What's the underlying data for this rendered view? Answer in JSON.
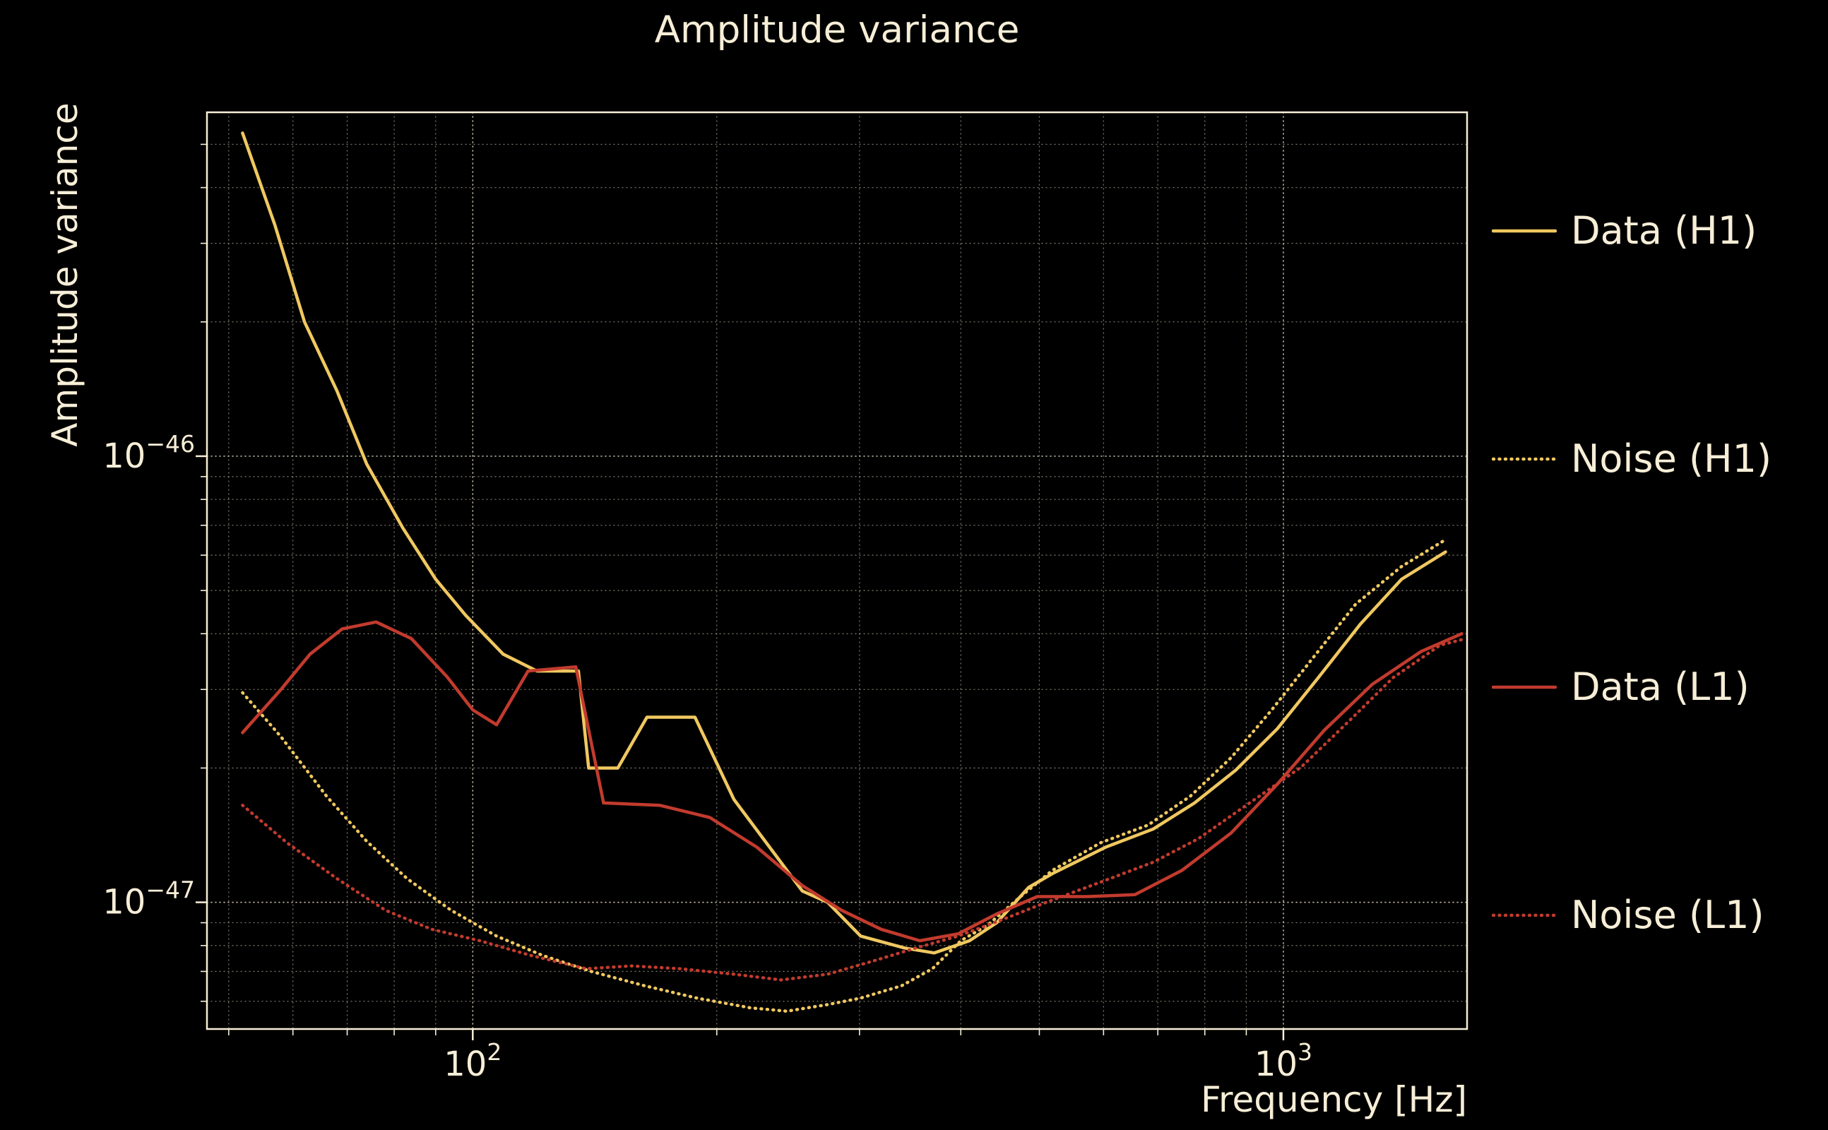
{
  "chart_data": {
    "type": "line",
    "title": "Amplitude variance",
    "xlabel": "Frequency [Hz]",
    "ylabel": "Amplitude variance",
    "xscale": "log",
    "yscale": "log",
    "xlim": [
      47,
      1685
    ],
    "ylim": [
      5.2e-48,
      5.9e-46
    ],
    "x_ticks": [
      100,
      1000
    ],
    "y_ticks": [
      1e-46,
      1e-47
    ],
    "grid": "both-major-and-minor-dotted",
    "legend_position": "right-outside",
    "colors": {
      "h1": "#f0c860",
      "l1": "#c23b2e",
      "text": "#f7eed7",
      "grid": "#f5ead2",
      "background": "#000000"
    },
    "series": [
      {
        "name": "Data (H1)",
        "color_key": "h1",
        "style": "solid",
        "x": [
          52,
          57,
          62,
          68,
          74,
          82,
          90,
          98,
          109,
          120,
          135,
          139,
          151,
          164,
          188,
          210,
          236,
          255,
          274,
          301,
          341,
          371,
          410,
          443,
          485,
          519,
          604,
          691,
          777,
          874,
          983,
          1106,
          1244,
          1399,
          1585
        ],
        "y": [
          5.3e-46,
          3.3e-46,
          2e-46,
          1.4e-46,
          9.6e-47,
          6.9e-47,
          5.3e-47,
          4.4e-47,
          3.6e-47,
          3.3e-47,
          3.3e-47,
          2e-47,
          2e-47,
          2.6e-47,
          2.6e-47,
          1.7e-47,
          1.28e-47,
          1.06e-47,
          1e-47,
          8.4e-48,
          7.9e-48,
          7.7e-48,
          8.2e-48,
          9e-48,
          1.08e-47,
          1.16e-47,
          1.33e-47,
          1.46e-47,
          1.67e-47,
          1.98e-47,
          2.45e-47,
          3.2e-47,
          4.2e-47,
          5.3e-47,
          6.1e-47
        ]
      },
      {
        "name": "Noise (H1)",
        "color_key": "h1",
        "style": "dotted",
        "x": [
          52,
          58,
          66,
          74,
          83,
          94,
          107,
          122,
          140,
          163,
          189,
          220,
          244,
          274,
          301,
          338,
          369,
          400,
          432,
          474,
          519,
          595,
          681,
          768,
          862,
          966,
          1089,
          1228,
          1399,
          1585
        ],
        "y": [
          2.95e-47,
          2.35e-47,
          1.73e-47,
          1.37e-47,
          1.13e-47,
          9.6e-48,
          8.4e-48,
          7.6e-48,
          7e-48,
          6.5e-48,
          6.1e-48,
          5.8e-48,
          5.7e-48,
          5.9e-48,
          6.1e-48,
          6.5e-48,
          7.1e-48,
          8.2e-48,
          8.9e-48,
          1.03e-47,
          1.18e-47,
          1.36e-47,
          1.49e-47,
          1.73e-47,
          2.11e-47,
          2.69e-47,
          3.54e-47,
          4.66e-47,
          5.66e-47,
          6.5e-47
        ]
      },
      {
        "name": "Data (L1)",
        "color_key": "l1",
        "style": "solid",
        "x": [
          52,
          58,
          63,
          69,
          76,
          84,
          93,
          100,
          107,
          117,
          134,
          145,
          170,
          196,
          224,
          255,
          285,
          319,
          356,
          397,
          442,
          497,
          574,
          656,
          750,
          862,
          983,
          1123,
          1287,
          1479,
          1660
        ],
        "y": [
          2.4e-47,
          3e-47,
          3.6e-47,
          4.1e-47,
          4.25e-47,
          3.9e-47,
          3.2e-47,
          2.7e-47,
          2.5e-47,
          3.3e-47,
          3.37e-47,
          1.67e-47,
          1.65e-47,
          1.55e-47,
          1.33e-47,
          1.09e-47,
          9.6e-48,
          8.7e-48,
          8.2e-48,
          8.5e-48,
          9.4e-48,
          1.03e-47,
          1.03e-47,
          1.04e-47,
          1.18e-47,
          1.43e-47,
          1.84e-47,
          2.43e-47,
          3.08e-47,
          3.65e-47,
          4e-47
        ]
      },
      {
        "name": "Noise (L1)",
        "color_key": "l1",
        "style": "dotted",
        "x": [
          52,
          59,
          68,
          78,
          89,
          102,
          118,
          138,
          157,
          180,
          210,
          240,
          274,
          313,
          352,
          397,
          447,
          510,
          595,
          691,
          786,
          900,
          1052,
          1200,
          1366,
          1561,
          1660
        ],
        "y": [
          1.65e-47,
          1.36e-47,
          1.13e-47,
          9.6e-48,
          8.7e-48,
          8.2e-48,
          7.6e-48,
          7.1e-48,
          7.2e-48,
          7.1e-48,
          6.9e-48,
          6.7e-48,
          6.9e-48,
          7.4e-48,
          7.9e-48,
          8.4e-48,
          9.1e-48,
          1e-47,
          1.11e-47,
          1.23e-47,
          1.39e-47,
          1.65e-47,
          2.01e-47,
          2.53e-47,
          3.19e-47,
          3.77e-47,
          3.88e-47
        ]
      }
    ]
  }
}
